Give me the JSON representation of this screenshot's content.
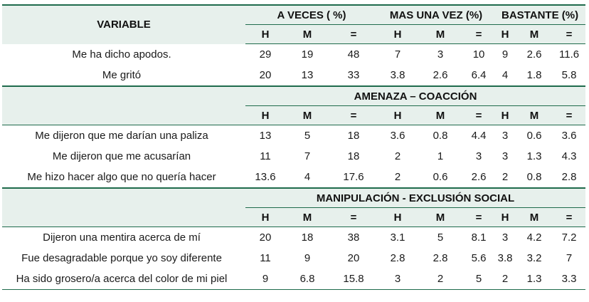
{
  "header": {
    "variable_label": "VARIABLE",
    "groups": [
      "A VECES ( %)",
      "MAS UNA VEZ (%)",
      "BASTANTE (%)"
    ],
    "subheaders": [
      "H",
      "M",
      "=",
      "H",
      "M",
      "=",
      "H",
      "M",
      "="
    ]
  },
  "sections": [
    {
      "title": "",
      "rows": [
        {
          "label": "Me ha dicho apodos.",
          "values": [
            "29",
            "19",
            "48",
            "7",
            "3",
            "10",
            "9",
            "2.6",
            "11.6"
          ]
        },
        {
          "label": "Me gritó",
          "values": [
            "20",
            "13",
            "33",
            "3.8",
            "2.6",
            "6.4",
            "4",
            "1.8",
            "5.8"
          ]
        }
      ]
    },
    {
      "title": "AMENAZA – COACCIÓN",
      "rows": [
        {
          "label": "Me dijeron que me darían una paliza",
          "values": [
            "13",
            "5",
            "18",
            "3.6",
            "0.8",
            "4.4",
            "3",
            "0.6",
            "3.6"
          ]
        },
        {
          "label": "Me dijeron que me acusarían",
          "values": [
            "11",
            "7",
            "18",
            "2",
            "1",
            "3",
            "3",
            "1.3",
            "4.3"
          ]
        },
        {
          "label": "Me hizo hacer algo que no quería hacer",
          "values": [
            "13.6",
            "4",
            "17.6",
            "2",
            "0.6",
            "2.6",
            "2",
            "0.8",
            "2.8"
          ]
        }
      ]
    },
    {
      "title": "MANIPULACIÓN - EXCLUSIÓN SOCIAL",
      "rows": [
        {
          "label": "Dijeron una mentira acerca de mí",
          "values": [
            "20",
            "18",
            "38",
            "3.1",
            "5",
            "8.1",
            "3",
            "4.2",
            "7.2"
          ]
        },
        {
          "label": "Fue desagradable porque yo soy diferente",
          "values": [
            "11",
            "9",
            "20",
            "2.8",
            "2.8",
            "5.6",
            "3.8",
            "3.2",
            "7"
          ]
        },
        {
          "label": "Ha sido grosero/a acerca del color de mi piel",
          "values": [
            "9",
            "6.8",
            "15.8",
            "3",
            "2",
            "5",
            "2",
            "1.3",
            "3.3"
          ]
        }
      ]
    }
  ]
}
